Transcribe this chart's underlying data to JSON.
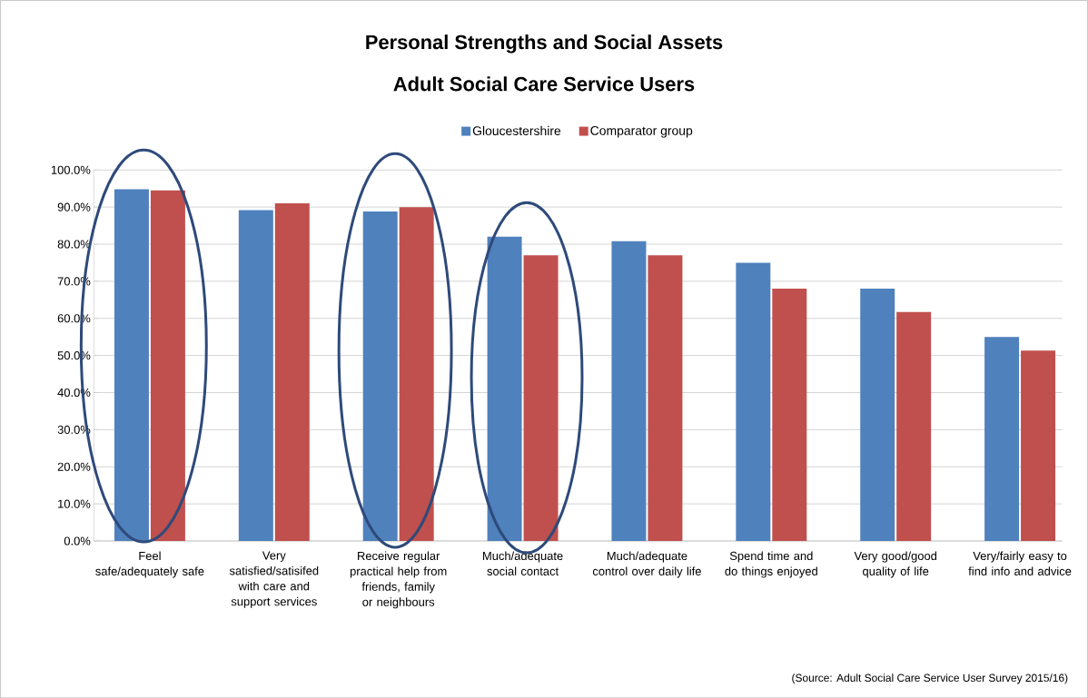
{
  "chart_data": {
    "type": "bar",
    "title": "Personal Strengths and Social Assets",
    "subtitle": "Adult Social Care Service Users",
    "categories": [
      "Feel safe/adequately safe",
      "Very satisfied/satisifed with care and support services",
      "Receive regular practical help from friends, family or neighbours",
      "Much/adequate social contact",
      "Much/adequate control over daily life",
      "Spend time and do things enjoyed",
      "Very good/good quality of life",
      "Very/fairly easy to find info and advice"
    ],
    "series": [
      {
        "name": "Gloucestershire",
        "color": "#4f81bd",
        "values": [
          94.8,
          89.2,
          88.8,
          82.0,
          80.8,
          75.0,
          68.0,
          55.0
        ]
      },
      {
        "name": "Comparator group",
        "color": "#c0504d",
        "values": [
          94.5,
          91.0,
          90.0,
          77.0,
          77.0,
          68.0,
          61.7,
          51.3
        ]
      }
    ],
    "ylim": [
      0,
      100
    ],
    "yticks": [
      {
        "value": 0,
        "label": "0.0%"
      },
      {
        "value": 10,
        "label": "10.0%"
      },
      {
        "value": 20,
        "label": "20.0%"
      },
      {
        "value": 30,
        "label": "30.0%"
      },
      {
        "value": 40,
        "label": "40.0%"
      },
      {
        "value": 50,
        "label": "50.0%"
      },
      {
        "value": 60,
        "label": "60.0%"
      },
      {
        "value": 70,
        "label": "70.0%"
      },
      {
        "value": 80,
        "label": "80.0%"
      },
      {
        "value": 90,
        "label": "90.0%"
      },
      {
        "value": 100,
        "label": "100.0%"
      }
    ],
    "grid": "y",
    "legend": "top",
    "annotations": [
      "(Source: Adult Social Care Service User Survey 2015/16)"
    ]
  }
}
